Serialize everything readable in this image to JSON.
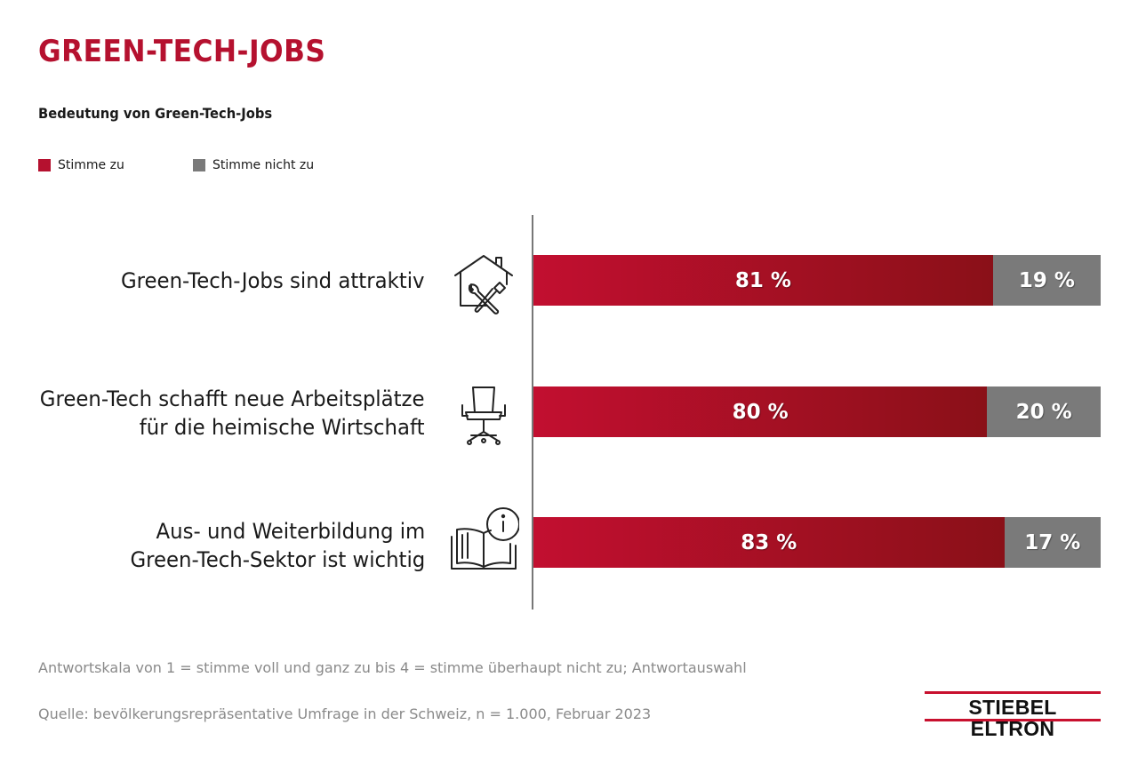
{
  "chart_data": {
    "type": "bar",
    "stacked": true,
    "orientation": "horizontal",
    "title": "GREEN-TECH-JOBS",
    "subtitle": "Bedeutung von Green-Tech-Jobs",
    "legend_position": "top-left",
    "series": [
      {
        "name": "Stimme zu",
        "color": "#b5112f",
        "values": [
          81,
          80,
          83
        ]
      },
      {
        "name": "Stimme nicht zu",
        "color": "#7a7a7a",
        "values": [
          19,
          20,
          17
        ]
      }
    ],
    "categories": [
      "Green-Tech-Jobs sind attraktiv",
      "Green-Tech schafft neue Arbeitsplätze für die heimische Wirtschaft",
      "Aus- und Weiterbildung im Green-Tech-Sektor ist wichtig"
    ],
    "rows": [
      {
        "lines": [
          "Green-Tech-Jobs sind attraktiv"
        ],
        "icon": "house-tools-icon",
        "agree": 81,
        "agree_label": "81 %",
        "disagree": 19,
        "disagree_label": "19 %"
      },
      {
        "lines": [
          "Green-Tech schafft neue Arbeitsplätze",
          "für die heimische Wirtschaft"
        ],
        "icon": "office-chair-icon",
        "agree": 80,
        "agree_label": "80 %",
        "disagree": 20,
        "disagree_label": "20 %"
      },
      {
        "lines": [
          "Aus- und Weiterbildung im",
          "Green-Tech-Sektor ist wichtig"
        ],
        "icon": "book-info-icon",
        "agree": 83,
        "agree_label": "83 %",
        "disagree": 17,
        "disagree_label": "17 %"
      }
    ],
    "xlim": [
      0,
      100
    ],
    "grid": false
  },
  "legend": {
    "agree": "Stimme zu",
    "disagree": "Stimme nicht zu"
  },
  "footer": {
    "scale_note": "Antwortskala von 1 = stimme voll und ganz zu bis 4 = stimme überhaupt nicht zu; Antwortauswahl",
    "source": "Quelle: bevölkerungsrepräsentative Umfrage in der Schweiz, n = 1.000, Februar 2023"
  },
  "logo": {
    "text": "STIEBEL ELTRON"
  },
  "colors": {
    "agree_light": "#c20f30",
    "agree_dark": "#8a1018",
    "disagree": "#7a7a7a",
    "title": "#b5112f",
    "accent": "#c8102e"
  }
}
